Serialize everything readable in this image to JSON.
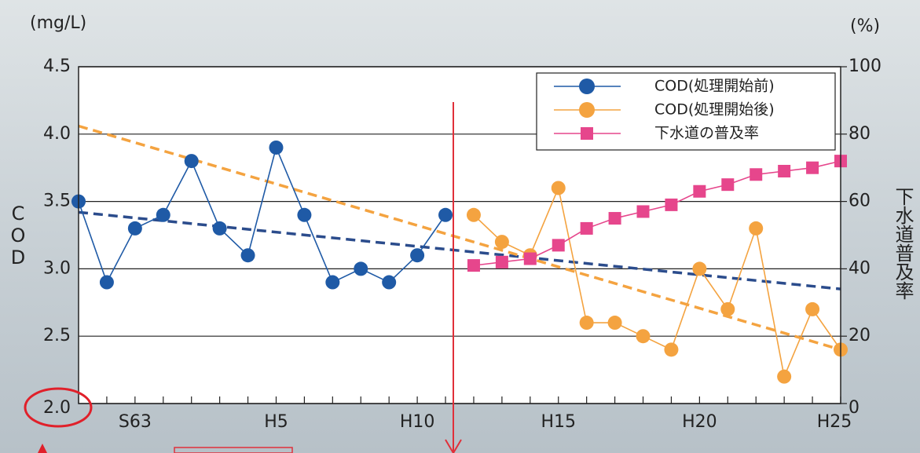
{
  "chart_data": {
    "type": "line",
    "y_label_unit": "(mg/L)",
    "y2_label_unit": "(%)",
    "y_label": "COD",
    "y2_label": "下水道普及率",
    "categories": [
      null,
      null,
      "S63",
      null,
      null,
      null,
      null,
      "H5",
      null,
      null,
      null,
      null,
      "H10",
      null,
      null,
      null,
      null,
      "H15",
      null,
      null,
      null,
      null,
      "H20",
      null,
      null,
      null,
      null,
      "H25"
    ],
    "ylim": [
      2.0,
      4.5
    ],
    "yticks": [
      {
        "value": 2.0,
        "label": "2.0"
      },
      {
        "value": 2.5,
        "label": "2.5"
      },
      {
        "value": 3.0,
        "label": "3.0"
      },
      {
        "value": 3.5,
        "label": "3.5"
      },
      {
        "value": 4.0,
        "label": "4.0"
      },
      {
        "value": 4.5,
        "label": "4.5"
      }
    ],
    "y2lim": [
      0,
      100
    ],
    "y2ticks": [
      0,
      20,
      40,
      60,
      80,
      100
    ],
    "grid": true,
    "legend": "top-right",
    "series": [
      {
        "name": "COD(処理開始前)",
        "color": "#1f5aa6",
        "marker": "circle",
        "values": [
          3.5,
          2.9,
          3.3,
          3.4,
          3.8,
          3.3,
          3.1,
          3.9,
          3.4,
          2.9,
          3.0,
          2.9,
          3.1,
          3.4,
          null,
          null,
          null,
          null,
          null,
          null,
          null,
          null,
          null,
          null,
          null,
          null,
          null,
          null
        ]
      },
      {
        "name": "COD(処理開始後)",
        "color": "#f4a340",
        "marker": "circle",
        "values": [
          null,
          null,
          null,
          null,
          null,
          null,
          null,
          null,
          null,
          null,
          null,
          null,
          null,
          null,
          3.4,
          3.2,
          3.1,
          3.6,
          2.6,
          2.6,
          2.5,
          2.4,
          3.0,
          2.7,
          3.3,
          2.2,
          2.7,
          2.4
        ]
      },
      {
        "name": "下水道の普及率",
        "color": "#e6468c",
        "marker": "square",
        "axis": "y2",
        "values": [
          null,
          null,
          null,
          null,
          null,
          null,
          null,
          null,
          null,
          null,
          null,
          null,
          null,
          null,
          41,
          42,
          43,
          47,
          52,
          55,
          57,
          59,
          63,
          65,
          68,
          69,
          70,
          72
        ]
      }
    ],
    "trends": [
      {
        "color": "#2b4c8c",
        "values": [
          3.42,
          2.85
        ]
      },
      {
        "color": "#f4a340",
        "values": [
          4.06,
          2.4
        ]
      }
    ]
  }
}
